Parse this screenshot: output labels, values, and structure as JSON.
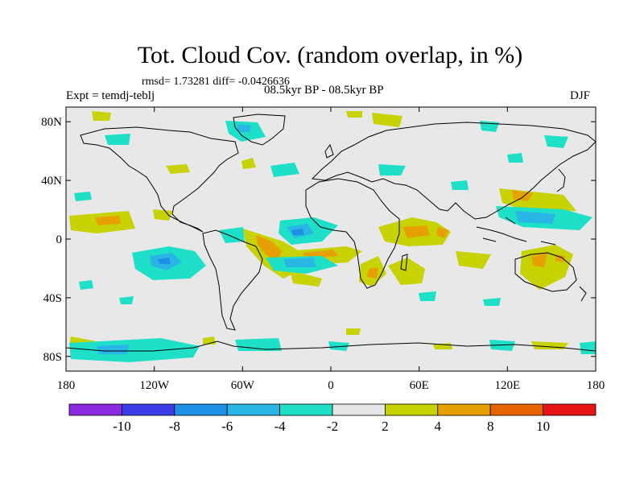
{
  "title": "Tot. Cloud Cov. (random overlap, in %)",
  "stats": "rmsd= 1.73281  diff= -0.0426636",
  "experiment": "Expt = temdj-teblj",
  "period": "08.5kyr BP - 08.5kyr BP",
  "season": "DJF",
  "map": {
    "projection": "cylindrical equidistant",
    "lat_range": [
      -90,
      90
    ],
    "lon_range": [
      -180,
      180
    ],
    "background_color": "#e8e8e8",
    "y_ticks": [
      "80N",
      "40N",
      "0",
      "40S",
      "80S"
    ],
    "y_tick_lats": [
      80,
      40,
      0,
      -40,
      -80
    ],
    "x_ticks": [
      "180",
      "120W",
      "60W",
      "0",
      "60E",
      "120E",
      "180"
    ],
    "x_tick_lons": [
      -180,
      -120,
      -60,
      0,
      60,
      120,
      180
    ]
  },
  "colorbar": {
    "colors": [
      "#8a2be2",
      "#3c3ce6",
      "#1e90e6",
      "#29b6e6",
      "#1ee0c8",
      "#e6e6e6",
      "#c8d200",
      "#e6a000",
      "#e66400",
      "#e61414"
    ],
    "labels": [
      "-10",
      "-8",
      "-6",
      "-4",
      "-2",
      "2",
      "4",
      "8",
      "10"
    ]
  }
}
